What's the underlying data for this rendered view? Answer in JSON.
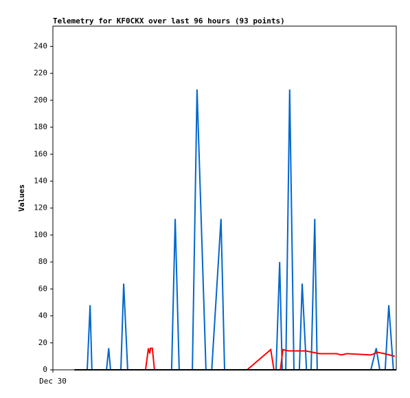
{
  "chart_data": {
    "type": "line",
    "title": "Telemetry for KF0CKX over last 96 hours (93 points)",
    "ylabel": "Values",
    "xlim": [
      0,
      96
    ],
    "xticks": [
      {
        "value": 0,
        "label": "Dec 30"
      }
    ],
    "ylim": [
      0,
      255
    ],
    "yticks": [
      0,
      20,
      40,
      60,
      80,
      100,
      120,
      140,
      160,
      180,
      200,
      220,
      240
    ],
    "grid": false,
    "series": [
      {
        "color": "#0066cc",
        "x": [
          6.0,
          9.6,
          10.4,
          10.9,
          15.0,
          15.6,
          16.1,
          19.0,
          19.8,
          20.9,
          33.2,
          34.2,
          35.3,
          39.0,
          40.3,
          42.8,
          44.4,
          47.0,
          48.0,
          62.4,
          63.4,
          64.1,
          65.1,
          66.2,
          67.4,
          68.9,
          69.7,
          70.9,
          72.2,
          73.2,
          73.9,
          88.9,
          90.4,
          91.4,
          92.9,
          93.9,
          95.2
        ],
        "values": [
          0,
          0,
          48,
          0,
          0,
          16,
          0,
          0,
          64,
          0,
          0,
          112,
          0,
          0,
          208,
          0,
          0,
          112,
          0,
          0,
          80,
          0,
          0,
          208,
          0,
          0,
          64,
          0,
          0,
          112,
          0,
          0,
          16,
          0,
          0,
          48,
          0
        ]
      },
      {
        "color": "#ff0000",
        "x": [
          25.9,
          26.7,
          27.1,
          27.3,
          27.8,
          28.4,
          54.3,
          60.9,
          61.8,
          63.6,
          64.3,
          65.9,
          67.8,
          70.7,
          72.6,
          74.5,
          79.3,
          80.6,
          82.2,
          88.9,
          90.8,
          92.7,
          95.6
        ],
        "values": [
          0,
          16,
          12,
          16,
          16,
          0,
          0,
          15,
          0,
          0,
          15,
          14,
          14,
          14,
          13,
          12,
          12,
          11,
          12,
          11,
          13,
          12,
          10
        ]
      },
      {
        "color": "#000000",
        "x": [
          6.0,
          96
        ],
        "values": [
          0,
          0
        ]
      }
    ]
  }
}
